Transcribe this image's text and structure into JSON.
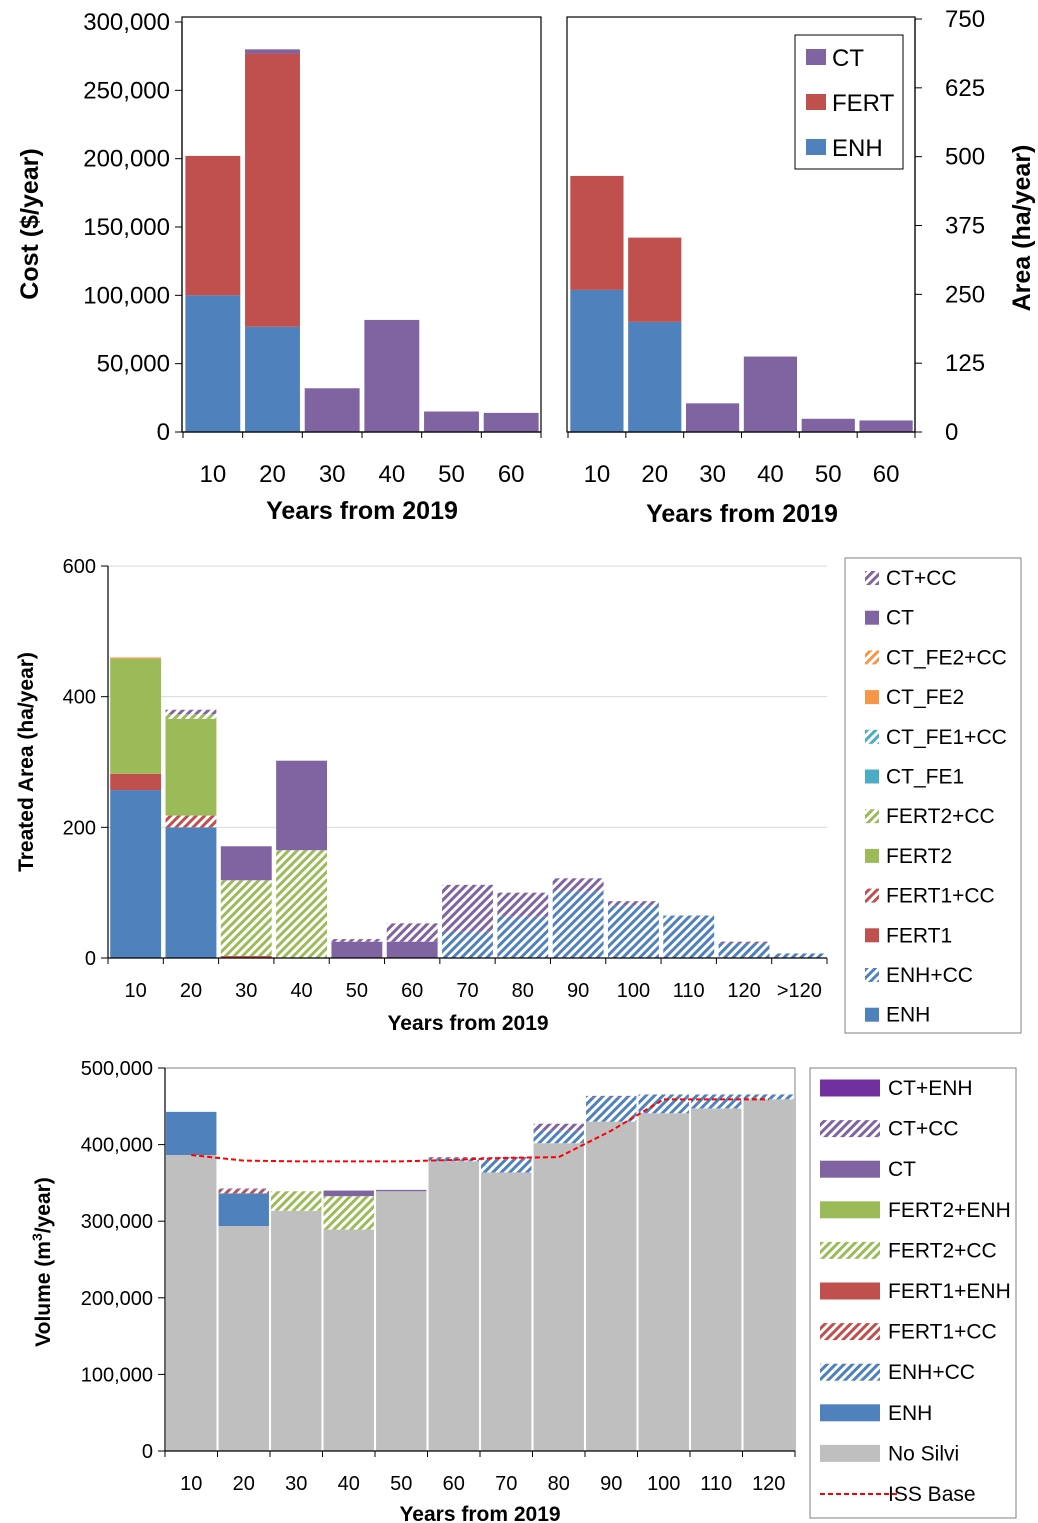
{
  "colors": {
    "CT": "#8064a2",
    "FERT": "#c0504d",
    "ENH": "#4f81bd",
    "CT_FE2": "#f79646",
    "CT_FE1": "#4bacc6",
    "FERT2": "#9bbb59",
    "NoSilvi": "#bfbfbf",
    "CT+ENH": "#7030a0",
    "ISS": "#ff0000"
  },
  "chart_data": [
    {
      "type": "bar",
      "stacked": true,
      "categories": [
        "10",
        "20",
        "30",
        "40",
        "50",
        "60"
      ],
      "xlabel": "Years from 2019",
      "ylabel": "Cost ($/year)",
      "ylim": [
        0,
        300000
      ],
      "yticks": [
        "0",
        "50,000",
        "100,000",
        "150,000",
        "200,000",
        "250,000",
        "300,000"
      ],
      "series": [
        {
          "name": "ENH",
          "values": [
            100000,
            77000,
            0,
            0,
            0,
            0
          ]
        },
        {
          "name": "FERT",
          "values": [
            102000,
            200000,
            0,
            0,
            0,
            0
          ]
        },
        {
          "name": "CT",
          "values": [
            0,
            3000,
            32000,
            82000,
            15000,
            14000
          ]
        }
      ],
      "legend": "none"
    },
    {
      "type": "bar",
      "stacked": true,
      "categories": [
        "10",
        "20",
        "30",
        "40",
        "50",
        "60"
      ],
      "xlabel": "Years from 2019",
      "ylabel": "Area (ha/year)",
      "ylim": [
        0,
        750
      ],
      "yticks": [
        "0",
        "125",
        "250",
        "375",
        "500",
        "625",
        "750"
      ],
      "series": [
        {
          "name": "ENH",
          "values": [
            258,
            200,
            0,
            0,
            0,
            0
          ]
        },
        {
          "name": "FERT",
          "values": [
            207,
            153,
            0,
            0,
            0,
            0
          ]
        },
        {
          "name": "CT",
          "values": [
            0,
            0,
            52,
            137,
            24,
            21
          ]
        }
      ],
      "legend": "top-right",
      "legend_entries": [
        "CT",
        "FERT",
        "ENH"
      ]
    },
    {
      "type": "bar",
      "stacked": true,
      "categories": [
        "10",
        "20",
        "30",
        "40",
        "50",
        "60",
        "70",
        "80",
        "90",
        "100",
        "110",
        "120",
        ">120"
      ],
      "xlabel": "Years from 2019",
      "ylabel": "Treated Area (ha/year)",
      "ylim": [
        0,
        600
      ],
      "yticks": [
        "0",
        "200",
        "400",
        "600"
      ],
      "grid": true,
      "series": [
        {
          "name": "ENH",
          "values": [
            257,
            200,
            0,
            0,
            0,
            0,
            0,
            0,
            0,
            0,
            0,
            0,
            0
          ]
        },
        {
          "name": "ENH+CC",
          "values": [
            0,
            0,
            0,
            0,
            0,
            0,
            40,
            63,
            102,
            80,
            65,
            22,
            7
          ]
        },
        {
          "name": "FERT1",
          "values": [
            25,
            0,
            3,
            0,
            0,
            0,
            0,
            0,
            0,
            0,
            0,
            0,
            0
          ]
        },
        {
          "name": "FERT1+CC",
          "values": [
            0,
            18,
            0,
            0,
            0,
            0,
            0,
            0,
            0,
            0,
            0,
            0,
            0
          ]
        },
        {
          "name": "FERT2",
          "values": [
            176,
            148,
            0,
            0,
            0,
            0,
            0,
            0,
            0,
            0,
            0,
            0,
            0
          ]
        },
        {
          "name": "FERT2+CC",
          "values": [
            0,
            7,
            116,
            165,
            0,
            0,
            0,
            0,
            0,
            0,
            0,
            0,
            0
          ]
        },
        {
          "name": "CT_FE1",
          "values": [
            0,
            0,
            0,
            0,
            0,
            0,
            0,
            0,
            0,
            0,
            0,
            0,
            0
          ]
        },
        {
          "name": "CT_FE1+CC",
          "values": [
            0,
            0,
            0,
            0,
            0,
            0,
            0,
            0,
            0,
            0,
            0,
            0,
            0
          ]
        },
        {
          "name": "CT_FE2",
          "values": [
            2,
            0,
            0,
            0,
            0,
            0,
            0,
            0,
            0,
            0,
            0,
            0,
            0
          ]
        },
        {
          "name": "CT_FE2+CC",
          "values": [
            0,
            0,
            0,
            0,
            0,
            0,
            0,
            0,
            0,
            0,
            0,
            0,
            0
          ]
        },
        {
          "name": "CT",
          "values": [
            0,
            0,
            52,
            137,
            25,
            25,
            0,
            0,
            0,
            0,
            0,
            0,
            0
          ]
        },
        {
          "name": "CT+CC",
          "values": [
            0,
            7,
            0,
            0,
            4,
            28,
            72,
            37,
            20,
            7,
            0,
            3,
            0
          ]
        }
      ],
      "legend": "right",
      "legend_entries": [
        "CT+CC",
        "CT",
        "CT_FE2+CC",
        "CT_FE2",
        "CT_FE1+CC",
        "CT_FE1",
        "FERT2+CC",
        "FERT2",
        "FERT1+CC",
        "FERT1",
        "ENH+CC",
        "ENH"
      ]
    },
    {
      "type": "bar",
      "stacked": true,
      "categories": [
        "10",
        "20",
        "30",
        "40",
        "50",
        "60",
        "70",
        "80",
        "90",
        "100",
        "110",
        "120"
      ],
      "xlabel": "Years from 2019",
      "ylabel_main": "Volume (m",
      "ylabel_sup": "3",
      "ylabel_end": "/year)",
      "ylim": [
        0,
        550000
      ],
      "yticks": [
        "0",
        "100,000",
        "200,000",
        "300,000",
        "400,000",
        "500,000"
      ],
      "series": [
        {
          "name": "No Silvi",
          "values": [
            425000,
            323000,
            345000,
            318000,
            373000,
            416000,
            400000,
            442000,
            473000,
            485000,
            492000,
            505000
          ]
        },
        {
          "name": "ENH",
          "values": [
            62000,
            47000,
            0,
            0,
            0,
            0,
            0,
            0,
            0,
            0,
            0,
            0
          ]
        },
        {
          "name": "ENH+CC",
          "values": [
            0,
            0,
            0,
            0,
            0,
            4000,
            18000,
            18000,
            35000,
            27000,
            20000,
            7000
          ]
        },
        {
          "name": "FERT1+ENH",
          "values": [
            0,
            0,
            0,
            0,
            0,
            0,
            0,
            0,
            0,
            0,
            0,
            0
          ]
        },
        {
          "name": "FERT1+CC",
          "values": [
            0,
            5000,
            0,
            0,
            0,
            0,
            0,
            0,
            0,
            0,
            0,
            0
          ]
        },
        {
          "name": "FERT2+ENH",
          "values": [
            0,
            0,
            0,
            0,
            0,
            0,
            0,
            0,
            0,
            0,
            0,
            0
          ]
        },
        {
          "name": "FERT2+CC",
          "values": [
            0,
            0,
            28000,
            48000,
            0,
            0,
            0,
            0,
            0,
            0,
            0,
            0
          ]
        },
        {
          "name": "CT",
          "values": [
            0,
            0,
            0,
            8000,
            2000,
            0,
            0,
            0,
            0,
            0,
            0,
            0
          ]
        },
        {
          "name": "CT+CC",
          "values": [
            0,
            2000,
            0,
            0,
            0,
            2000,
            4000,
            10000,
            2000,
            0,
            0,
            0
          ]
        },
        {
          "name": "CT+ENH",
          "values": [
            0,
            0,
            0,
            0,
            0,
            0,
            0,
            0,
            0,
            0,
            0,
            0
          ]
        }
      ],
      "line": {
        "name": "ISS Base",
        "values": [
          425000,
          417000,
          416000,
          416000,
          416000,
          418000,
          421000,
          422000,
          460000,
          505000,
          505000,
          505000
        ]
      },
      "legend": "right",
      "legend_entries": [
        "CT+ENH",
        "CT+CC",
        "CT",
        "FERT2+ENH",
        "FERT2+CC",
        "FERT1+ENH",
        "FERT1+CC",
        "ENH+CC",
        "ENH",
        "No Silvi",
        "ISS Base"
      ]
    }
  ]
}
